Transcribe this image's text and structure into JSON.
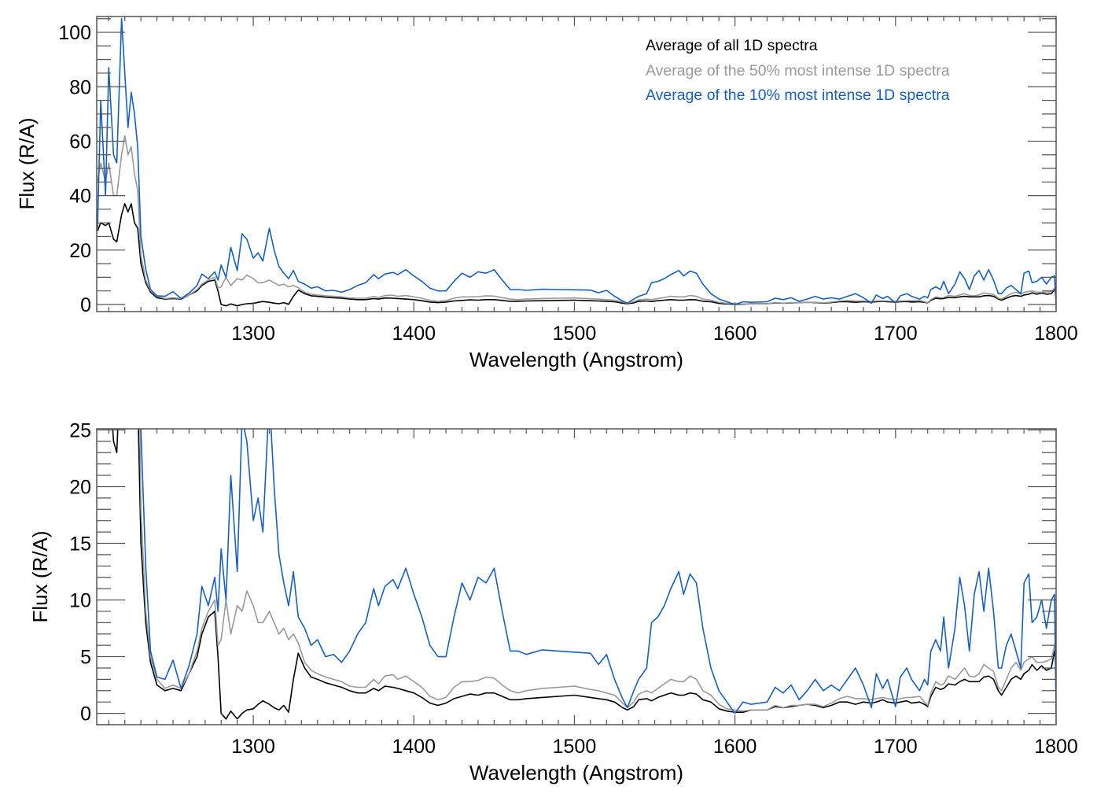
{
  "chart_data": [
    {
      "type": "line",
      "panel": "top",
      "title": "",
      "xlabel": "Wavelength (Angstrom)",
      "ylabel": "Flux (R/A)",
      "xlim": [
        1202.5,
        1800
      ],
      "ylim": [
        -2.6,
        105.8
      ],
      "xticks": [
        1300,
        1400,
        1500,
        1600,
        1700,
        1800
      ],
      "xtick_labels": [
        "1300",
        "1400",
        "1500",
        "1600",
        "1700",
        "1800"
      ],
      "x_minor_step": 10,
      "yticks": [
        0,
        20,
        40,
        60,
        80,
        100
      ],
      "ytick_labels": [
        "0",
        "20",
        "40",
        "60",
        "80",
        "100"
      ],
      "y_minor_step": 5,
      "grid": false,
      "legend_position": "top-right",
      "legend": [
        {
          "label": "Average of all 1D spectra",
          "color": "#000000"
        },
        {
          "label": "Average of the 50% most intense 1D spectra",
          "color": "#999999"
        },
        {
          "label": "Average of the 10% most intense 1D spectra",
          "color": "#1560c0"
        }
      ]
    },
    {
      "type": "line",
      "panel": "bottom",
      "title": "",
      "xlabel": "Wavelength (Angstrom)",
      "ylabel": "Flux (R/A)",
      "xlim": [
        1202.5,
        1800
      ],
      "ylim": [
        -1.0,
        25.1
      ],
      "xticks": [
        1300,
        1400,
        1500,
        1600,
        1700,
        1800
      ],
      "xtick_labels": [
        "1300",
        "1400",
        "1500",
        "1600",
        "1700",
        "1800"
      ],
      "x_minor_step": 10,
      "yticks": [
        0,
        5,
        10,
        15,
        20,
        25
      ],
      "ytick_labels": [
        "0",
        "5",
        "10",
        "15",
        "20",
        "25"
      ],
      "y_minor_step": 1,
      "grid": false,
      "legend_position": "none"
    }
  ],
  "series_data": {
    "x": [
      1203,
      1205,
      1208,
      1210,
      1213,
      1215,
      1218,
      1220,
      1222,
      1224,
      1226,
      1228,
      1230,
      1233,
      1236,
      1240,
      1245,
      1250,
      1255,
      1260,
      1265,
      1268,
      1272,
      1276,
      1278,
      1280,
      1283,
      1286,
      1290,
      1293,
      1296,
      1300,
      1303,
      1306,
      1310,
      1313,
      1316,
      1319,
      1322,
      1325,
      1328,
      1332,
      1336,
      1340,
      1345,
      1350,
      1355,
      1360,
      1365,
      1370,
      1375,
      1378,
      1382,
      1387,
      1390,
      1395,
      1400,
      1405,
      1410,
      1415,
      1420,
      1425,
      1430,
      1435,
      1440,
      1445,
      1450,
      1455,
      1460,
      1465,
      1470,
      1480,
      1490,
      1500,
      1510,
      1515,
      1520,
      1525,
      1530,
      1533,
      1537,
      1540,
      1545,
      1548,
      1552,
      1556,
      1560,
      1565,
      1568,
      1572,
      1576,
      1580,
      1585,
      1590,
      1595,
      1600,
      1605,
      1610,
      1620,
      1625,
      1630,
      1635,
      1640,
      1645,
      1650,
      1655,
      1660,
      1665,
      1670,
      1675,
      1680,
      1685,
      1688,
      1692,
      1695,
      1700,
      1703,
      1707,
      1710,
      1715,
      1718,
      1720,
      1722,
      1725,
      1728,
      1730,
      1733,
      1737,
      1740,
      1743,
      1746,
      1749,
      1752,
      1755,
      1758,
      1761,
      1764,
      1766,
      1769,
      1772,
      1775,
      1778,
      1780,
      1783,
      1785,
      1788,
      1791,
      1794,
      1797,
      1799,
      1800
    ],
    "series": [
      {
        "name": "Average of all 1D spectra",
        "color": "#000000",
        "values": [
          27,
          30,
          29,
          30,
          24,
          23,
          33,
          37,
          34,
          37,
          30,
          28,
          15,
          8,
          4.5,
          2.5,
          2,
          2.2,
          2.0,
          3.5,
          5,
          7,
          8.5,
          9,
          5,
          0,
          -0.5,
          0.2,
          -0.5,
          0,
          0.3,
          0.4,
          0.8,
          1.1,
          0.8,
          0.5,
          0.3,
          0.7,
          0.1,
          3,
          5.3,
          4,
          3.2,
          3,
          2.7,
          2.5,
          2.3,
          2.0,
          1.8,
          1.8,
          2.2,
          2.0,
          2.4,
          2.3,
          2.2,
          2.0,
          1.8,
          1.4,
          0.9,
          0.7,
          0.9,
          1.3,
          1.5,
          1.7,
          1.6,
          1.8,
          1.8,
          1.5,
          1.2,
          1.2,
          1.3,
          1.4,
          1.5,
          1.6,
          1.4,
          1.3,
          1.2,
          1.0,
          0.5,
          0.3,
          0.6,
          1.2,
          1.3,
          1.1,
          1.4,
          1.6,
          1.8,
          1.6,
          1.6,
          1.8,
          1.7,
          1.2,
          1.0,
          0.4,
          0.2,
          0.1,
          0.1,
          0.3,
          0.3,
          0.6,
          0.5,
          0.6,
          0.7,
          0.8,
          0.7,
          0.5,
          0.7,
          1.0,
          1.0,
          0.8,
          1.0,
          0.9,
          1.0,
          1.2,
          1.0,
          0.9,
          1.0,
          1.1,
          0.9,
          1.0,
          0.8,
          0.6,
          1.5,
          2.3,
          2.1,
          2.2,
          2.6,
          2.5,
          2.8,
          3.0,
          2.8,
          2.8,
          2.8,
          3.2,
          3.3,
          3.0,
          2.0,
          1.6,
          2.3,
          3.0,
          3.3,
          3.0,
          3.5,
          3.8,
          4.3,
          3.8,
          4.2,
          3.8,
          4.0,
          5.5,
          4.0
        ]
      },
      {
        "name": "Average of the 50% most intense 1D spectra",
        "color": "#999999",
        "values": [
          45,
          52,
          45,
          52,
          40,
          40,
          55,
          62,
          55,
          58,
          48,
          42,
          18,
          9,
          5,
          3,
          2.2,
          2.5,
          2.2,
          3.5,
          5.5,
          7.5,
          9,
          10,
          6,
          6.5,
          10,
          7,
          9.5,
          9,
          10.8,
          9.5,
          8,
          8,
          9,
          8,
          7,
          7.5,
          6.5,
          7,
          6.2,
          4.5,
          3.8,
          3.5,
          3.2,
          3,
          2.8,
          2.4,
          2.3,
          2.3,
          3.0,
          2.6,
          3.3,
          3.4,
          3.0,
          3.3,
          2.8,
          2.3,
          1.5,
          1.2,
          1.4,
          2.3,
          2.8,
          2.8,
          2.9,
          3.2,
          3.1,
          2.5,
          2.0,
          1.8,
          2.0,
          2.2,
          2.3,
          2.4,
          2.1,
          2.0,
          1.8,
          1.6,
          0.9,
          0.5,
          1.0,
          1.7,
          2.0,
          1.8,
          2.2,
          2.6,
          3.0,
          2.8,
          2.8,
          3.3,
          3.0,
          2.0,
          1.6,
          0.8,
          0.4,
          0.3,
          0.2,
          0.3,
          0.3,
          0.7,
          0.5,
          0.7,
          0.7,
          0.8,
          0.8,
          0.6,
          0.9,
          1.3,
          1.5,
          1.3,
          1.3,
          1.2,
          1.3,
          1.4,
          1.3,
          1.2,
          1.3,
          1.4,
          1.4,
          1.5,
          1.0,
          0.7,
          1.8,
          2.8,
          2.5,
          2.6,
          3.3,
          3.0,
          3.5,
          4.0,
          3.3,
          3.2,
          3.5,
          4.3,
          4.0,
          3.7,
          2.3,
          2.0,
          3.0,
          4.0,
          4.5,
          3.8,
          4.5,
          4.8,
          5.0,
          4.5,
          4.5,
          4.6,
          4.8,
          6.0,
          5.0
        ]
      },
      {
        "name": "Average of the 10% most intense 1D spectra",
        "color": "#1560c0",
        "values": [
          28,
          75,
          40,
          87,
          55,
          52,
          105,
          85,
          65,
          78,
          70,
          58,
          25,
          13,
          5.5,
          3.2,
          3.0,
          4.7,
          2.2,
          4.2,
          7,
          11.2,
          9.5,
          12,
          9,
          14.5,
          10,
          21,
          12.5,
          26,
          24,
          17,
          19,
          16,
          28,
          20,
          14,
          11.5,
          9.5,
          12.5,
          8.5,
          7.5,
          6,
          6.5,
          5,
          5.2,
          4.5,
          5.5,
          7,
          8,
          11,
          9.5,
          11.2,
          11.8,
          11,
          12.8,
          10.5,
          8.5,
          6,
          5,
          5.0,
          8.5,
          11.5,
          10,
          12,
          11.5,
          12.8,
          9,
          5.5,
          5.5,
          5.2,
          5.6,
          5.5,
          5.4,
          5.3,
          4.3,
          5.2,
          3.0,
          1.3,
          0.5,
          2.0,
          3.0,
          4.0,
          8,
          8.5,
          9.5,
          11.0,
          12.5,
          10.5,
          12.3,
          11.5,
          7.5,
          4.0,
          2.0,
          1.0,
          0.0,
          1.0,
          0.8,
          1.0,
          2.3,
          1.8,
          2.5,
          1.2,
          2.0,
          3.0,
          2.0,
          2.5,
          2.0,
          3.0,
          4.0,
          2.5,
          0.5,
          3.5,
          2.2,
          3.0,
          0.6,
          3.2,
          4.0,
          3.0,
          2.0,
          3.0,
          2.5,
          5.5,
          6.5,
          5.5,
          8.5,
          4.0,
          7.5,
          12,
          9.5,
          5.5,
          10.5,
          12.5,
          9.0,
          12.8,
          9.0,
          4.0,
          4.0,
          6.0,
          7.0,
          5.5,
          4.0,
          11.5,
          12.3,
          8.0,
          8.5,
          10.0,
          7.5,
          10.0,
          10.5,
          0.0
        ]
      }
    ]
  }
}
